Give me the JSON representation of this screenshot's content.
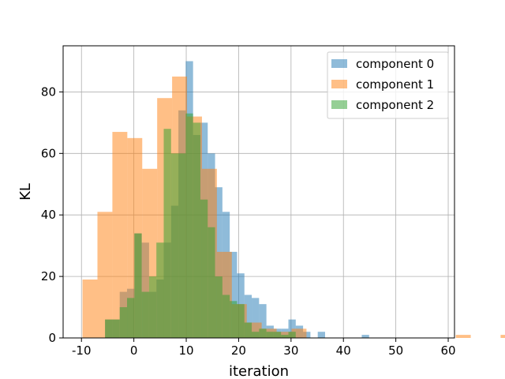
{
  "chart_data": {
    "type": "histogram",
    "title": "",
    "xlabel": "iteration",
    "ylabel": "KL",
    "xlim": [
      -13.5,
      61.2
    ],
    "ylim": [
      0,
      95
    ],
    "xticks": [
      -10,
      0,
      10,
      20,
      30,
      40,
      50,
      60
    ],
    "yticks": [
      0,
      20,
      40,
      60,
      80
    ],
    "grid": true,
    "legend_position": "upper right",
    "alpha": 0.5,
    "series": [
      {
        "name": "component 0",
        "color": "#1f77b4",
        "bin_start": -5.5,
        "bin_width": 1.4,
        "counts": [
          6,
          6,
          15,
          16,
          34,
          31,
          15,
          19,
          31,
          43,
          74,
          90,
          66,
          70,
          60,
          49,
          41,
          28,
          21,
          14,
          13,
          11,
          4,
          3,
          3,
          6,
          4,
          2,
          0,
          2,
          0,
          0,
          0,
          0,
          0,
          1
        ]
      },
      {
        "name": "component 1",
        "color": "#ff7f0e",
        "bin_start": -9.8,
        "bin_width": 2.85,
        "counts": [
          19,
          41,
          67,
          65,
          55,
          78,
          85,
          72,
          55,
          28,
          11,
          5,
          3,
          2,
          3,
          0,
          0,
          0,
          0,
          0,
          0,
          0,
          0,
          0,
          0,
          1,
          0,
          0,
          1
        ]
      },
      {
        "name": "component 2",
        "color": "#2ca02c",
        "bin_start": -5.5,
        "bin_width": 1.4,
        "counts": [
          6,
          6,
          10,
          13,
          34,
          15,
          20,
          31,
          68,
          60,
          60,
          73,
          70,
          45,
          36,
          20,
          14,
          12,
          11,
          5,
          2,
          3,
          2,
          2,
          1,
          2
        ]
      }
    ]
  }
}
